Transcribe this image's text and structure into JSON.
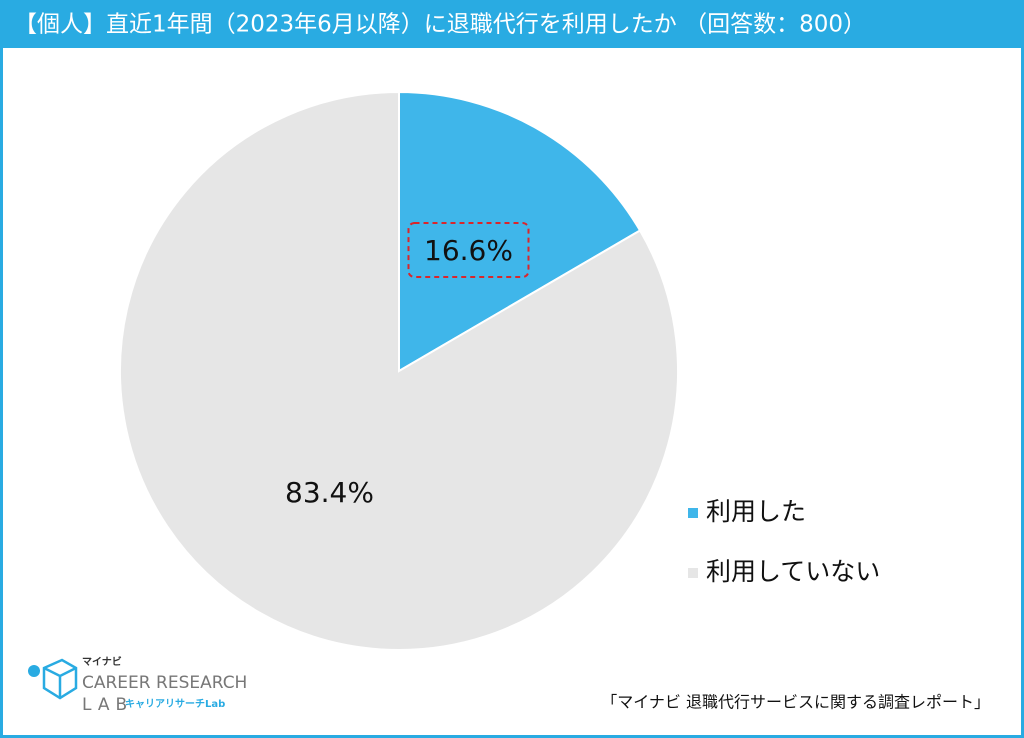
{
  "chart_data": {
    "type": "pie",
    "title": "【個人】直近1年間（2023年6月以降）に退職代行を利用したか （回答数：800）",
    "categories": [
      "利用した",
      "利用していない"
    ],
    "values": [
      16.6,
      83.4
    ],
    "value_labels": [
      "16.6%",
      "83.4%"
    ],
    "colors": [
      "#3fb6ea",
      "#e6e6e6"
    ],
    "legend": "right",
    "source": "「マイナビ 退職代行サービスに関する調査レポート」",
    "logo": {
      "brand": "マイナビ",
      "line1": "CAREER RESEARCH",
      "line2": "LAB",
      "sub": "キャリアリサーチLab"
    }
  }
}
